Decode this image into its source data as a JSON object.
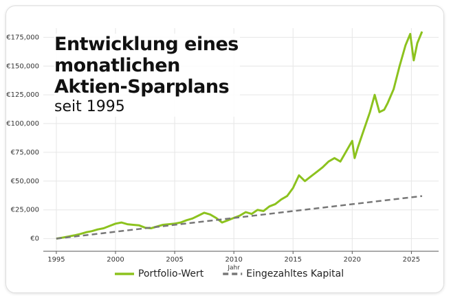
{
  "chart_data": {
    "type": "line",
    "title": "Entwicklung eines monatlichen Aktien-Sparplans",
    "subtitle": "seit 1995",
    "x_label": "Jahr",
    "xlim": [
      1993.9,
      2027.3
    ],
    "xticks": [
      1995,
      2000,
      2005,
      2010,
      2015,
      2020,
      2025
    ],
    "ylim": [
      -11000,
      183000
    ],
    "yticks": [
      {
        "value": 0,
        "label": "€0"
      },
      {
        "value": 25000,
        "label": "€25,000"
      },
      {
        "value": 50000,
        "label": "€50,000"
      },
      {
        "value": 75000,
        "label": "€75,000"
      },
      {
        "value": 100000,
        "label": "€100,000"
      },
      {
        "value": 125000,
        "label": "€125,000"
      },
      {
        "value": 150000,
        "label": "€150,000"
      },
      {
        "value": 175000,
        "label": "€175,000"
      }
    ],
    "grid": true,
    "legend": "bottom",
    "series": [
      {
        "name": "Portfolio-Wert",
        "color": "#8cc21e",
        "dash": false,
        "x": [
          1995,
          1995.5,
          1996,
          1996.5,
          1997,
          1997.5,
          1998,
          1998.5,
          1999,
          1999.5,
          2000,
          2000.5,
          2001,
          2001.5,
          2002,
          2002.5,
          2003,
          2003.5,
          2004,
          2004.5,
          2005,
          2005.5,
          2006,
          2006.5,
          2007,
          2007.5,
          2008,
          2008.5,
          2009,
          2009.5,
          2010,
          2010.5,
          2011,
          2011.5,
          2012,
          2012.5,
          2013,
          2013.5,
          2014,
          2014.5,
          2015,
          2015.5,
          2016,
          2016.5,
          2017,
          2017.5,
          2018,
          2018.5,
          2019,
          2019.5,
          2020,
          2020.2,
          2020.5,
          2021,
          2021.5,
          2021.9,
          2022.3,
          2022.7,
          2023,
          2023.5,
          2024,
          2024.5,
          2024.9,
          2025.2,
          2025.5,
          2025.9
        ],
        "values": [
          0,
          800,
          1800,
          2800,
          4000,
          5500,
          6500,
          8000,
          9000,
          11000,
          13000,
          14000,
          12500,
          12000,
          11500,
          9500,
          9000,
          10500,
          12000,
          12500,
          13000,
          14000,
          16000,
          17500,
          20000,
          22500,
          21000,
          18000,
          14000,
          16000,
          18000,
          20000,
          23000,
          21500,
          25000,
          24000,
          28000,
          30000,
          34000,
          37000,
          44000,
          55000,
          50000,
          54000,
          58000,
          62000,
          67000,
          70000,
          67000,
          76000,
          85000,
          70000,
          80000,
          95000,
          110000,
          125000,
          110000,
          112000,
          118000,
          130000,
          150000,
          168000,
          178000,
          155000,
          170000,
          180000
        ]
      },
      {
        "name": "Eingezahltes Kapital",
        "color": "#777777",
        "dash": true,
        "x": [
          1995,
          2025.9
        ],
        "values": [
          0,
          37000
        ]
      }
    ]
  }
}
